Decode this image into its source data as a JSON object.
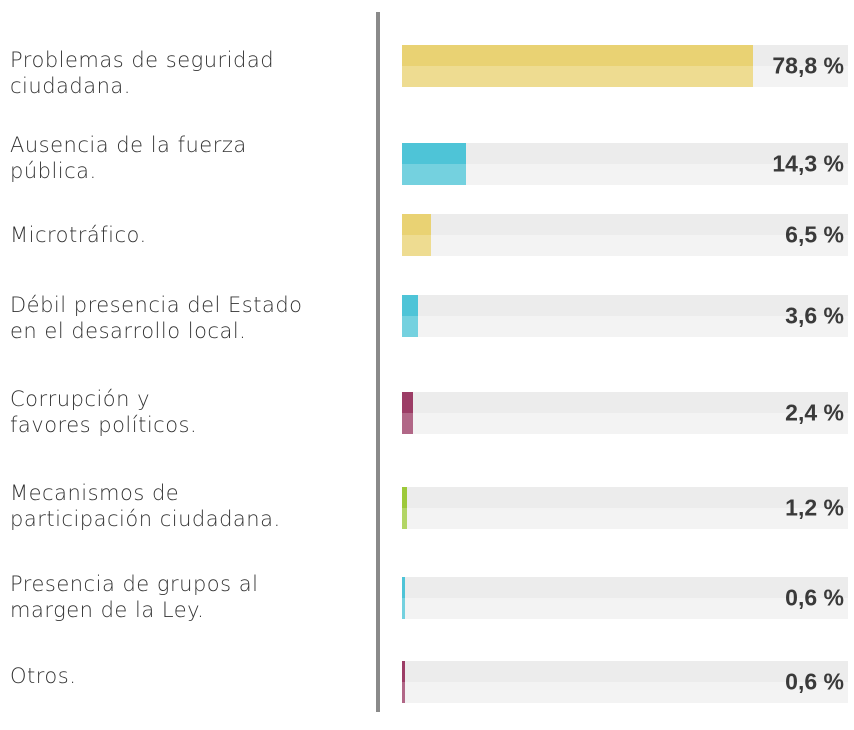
{
  "chart_data": {
    "type": "bar",
    "orientation": "horizontal",
    "categories": [
      "Problemas de seguridad\nciudadana.",
      "Ausencia de la fuerza\npública.",
      "Microtráfico.",
      "Débil presencia del Estado\nen el desarrollo local.",
      "Corrupción y\nfavores políticos.",
      "Mecanismos de\nparticipación ciudadana.",
      "Presencia de grupos al\nmargen de la Ley.",
      "Otros."
    ],
    "values": [
      78.8,
      14.3,
      6.5,
      3.6,
      2.4,
      1.2,
      0.6,
      0.6
    ],
    "value_labels": [
      "78,8 %",
      "14,3 %",
      "6,5 %",
      "3,6 %",
      "2,4 %",
      "1,2 %",
      "0,6 %",
      "0,6 %"
    ],
    "colors": [
      "#e9d273",
      "#4ec4d7",
      "#e9d273",
      "#4ec4d7",
      "#9c3d66",
      "#9dc93a",
      "#4ec4d7",
      "#9c3d66"
    ],
    "xlim": [
      0,
      100
    ]
  }
}
